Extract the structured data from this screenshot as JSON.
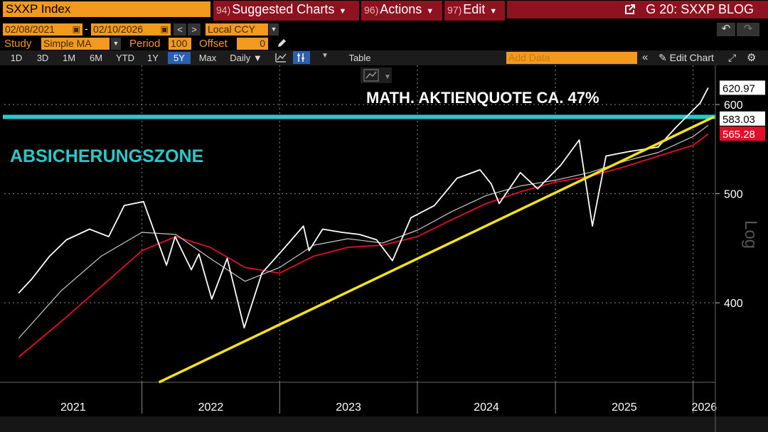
{
  "toolbar": {
    "ticker": "SXXP Index",
    "menus": [
      {
        "num": "94)",
        "label": "Suggested Charts"
      },
      {
        "num": "96)",
        "label": "Actions"
      },
      {
        "num": "97)",
        "label": "Edit"
      }
    ],
    "chart_title": "G 20: SXXP BLOG"
  },
  "dates": {
    "start": "02/08/2021",
    "end": "02/10/2026",
    "currency": "Local CCY"
  },
  "study": {
    "label": "Study",
    "type": "Simple MA",
    "period_label": "Period",
    "period": "100",
    "offset_label": "Offset",
    "offset": "0"
  },
  "ranges": {
    "items": [
      "1D",
      "3D",
      "1M",
      "6M",
      "YTD",
      "1Y",
      "5Y",
      "Max"
    ],
    "active": "5Y",
    "frequency": "Daily",
    "table_label": "Table",
    "add_data_placeholder": "Add Data",
    "edit_chart_label": "Edit Chart"
  },
  "chart_data": {
    "type": "line",
    "scale": "log",
    "axis_label": "Log",
    "ylim": [
      340,
      650
    ],
    "yticks": [
      400,
      500,
      600
    ],
    "x_ticks": [
      "2021",
      "2022",
      "2023",
      "2024",
      "2025",
      "2026"
    ],
    "price_labels": [
      {
        "value": 620.97,
        "label": "620.97",
        "color": "#ffffff"
      },
      {
        "value": 583.03,
        "label": "583.03",
        "color": "#ffffff"
      },
      {
        "value": 565.28,
        "label": "565.28",
        "color": "#e0102a"
      }
    ],
    "colors": {
      "price": "#ffffff",
      "ma_short": "#c8c8c8",
      "ma_long": "#e0102a",
      "trend": "#f2e31b",
      "zone": "#2ec7c9"
    },
    "series": [
      {
        "key": "price",
        "x": [
          "2021-02-08",
          "2021-03-15",
          "2021-05-01",
          "2021-06-15",
          "2021-08-15",
          "2021-10-05",
          "2021-11-15",
          "2022-01-05",
          "2022-03-07",
          "2022-03-30",
          "2022-05-12",
          "2022-06-01",
          "2022-07-05",
          "2022-08-15",
          "2022-09-29",
          "2022-11-15",
          "2023-01-15",
          "2023-03-05",
          "2023-03-20",
          "2023-04-25",
          "2023-06-15",
          "2023-08-01",
          "2023-09-15",
          "2023-10-27",
          "2023-12-15",
          "2024-02-15",
          "2024-04-15",
          "2024-06-15",
          "2024-07-15",
          "2024-08-05",
          "2024-09-30",
          "2024-11-15",
          "2025-01-15",
          "2025-03-05",
          "2025-04-09",
          "2025-05-15",
          "2025-07-15",
          "2025-09-30",
          "2025-11-15",
          "2026-01-20",
          "2026-02-10"
        ],
        "y": [
          408,
          420,
          440,
          455,
          465,
          458,
          488,
          492,
          432,
          458,
          428,
          442,
          403,
          438,
          380,
          425,
          448,
          468,
          445,
          465,
          462,
          460,
          455,
          436,
          476,
          488,
          516,
          525,
          510,
          490,
          522,
          505,
          530,
          558,
          468,
          540,
          545,
          550,
          572,
          602,
          621
        ]
      },
      {
        "key": "ma_short",
        "x": [
          "2021-02-08",
          "2021-06-01",
          "2021-09-15",
          "2022-01-01",
          "2022-04-01",
          "2022-07-01",
          "2022-10-01",
          "2023-01-01",
          "2023-04-01",
          "2023-07-01",
          "2023-10-01",
          "2024-01-01",
          "2024-04-01",
          "2024-07-01",
          "2024-10-01",
          "2025-01-01",
          "2025-04-01",
          "2025-07-01",
          "2025-10-01",
          "2026-01-01",
          "2026-02-10"
        ],
        "y": [
          372,
          410,
          440,
          462,
          460,
          438,
          418,
          430,
          450,
          456,
          452,
          464,
          482,
          498,
          508,
          514,
          522,
          534,
          544,
          562,
          575
        ]
      },
      {
        "key": "ma_long",
        "x": [
          "2021-02-08",
          "2021-06-01",
          "2021-10-01",
          "2022-01-01",
          "2022-04-01",
          "2022-07-01",
          "2022-10-01",
          "2023-01-01",
          "2023-04-01",
          "2023-07-01",
          "2023-10-01",
          "2024-01-01",
          "2024-04-01",
          "2024-07-01",
          "2024-10-01",
          "2025-01-01",
          "2025-04-01",
          "2025-07-01",
          "2025-10-01",
          "2026-01-01",
          "2026-02-10"
        ],
        "y": [
          358,
          385,
          418,
          445,
          458,
          448,
          430,
          425,
          440,
          448,
          450,
          458,
          474,
          490,
          502,
          512,
          518,
          528,
          540,
          552,
          565
        ]
      }
    ],
    "trendline": {
      "x": [
        "2022-02-15",
        "2026-02-25"
      ],
      "y": [
        340,
        585
      ]
    },
    "zone_level": 585,
    "annotations": [
      {
        "text": "MATH. AKTIENQUOTE CA. 47%",
        "color": "#ffffff"
      },
      {
        "text": "ABSICHERUNGSZONE",
        "color": "#2ec7c9"
      }
    ]
  }
}
